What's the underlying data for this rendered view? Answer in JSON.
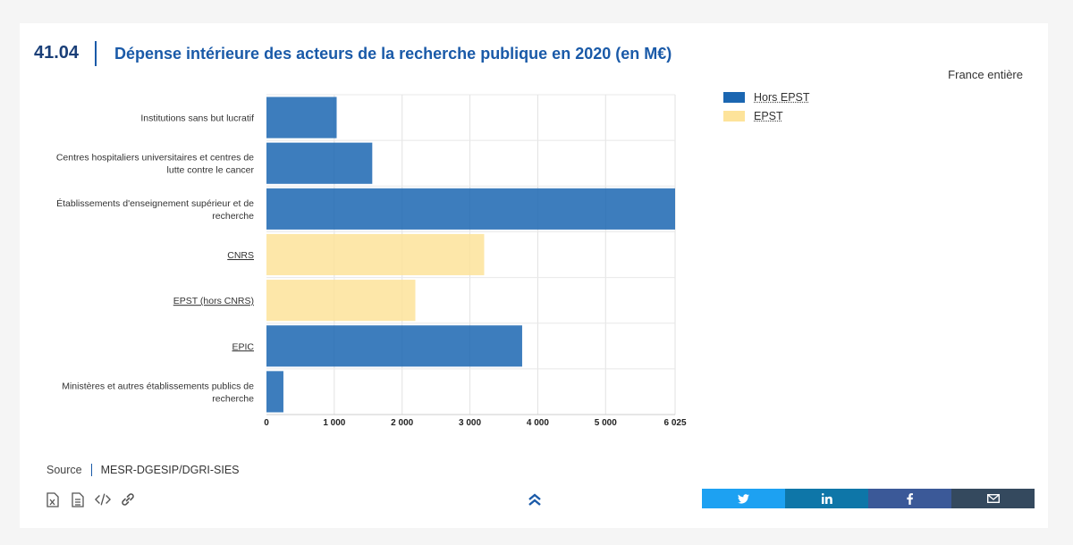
{
  "header": {
    "number": "41.04",
    "title": "Dépense intérieure des acteurs de la recherche publique en 2020 (en M€)",
    "scope": "France entière"
  },
  "legend": [
    {
      "label": "Hors EPST",
      "color": "#1b66b1"
    },
    {
      "label": "EPST",
      "color": "#fde39a"
    }
  ],
  "chart_data": {
    "type": "bar",
    "orientation": "horizontal",
    "categories": [
      "Institutions sans but lucratif",
      "Centres hospitaliers universitaires et centres de lutte contre le cancer",
      "Établissements d'enseignement supérieur et de recherche",
      "CNRS",
      "EPST (hors CNRS)",
      "EPIC",
      "Ministères et autres établissements publics de recherche"
    ],
    "values": [
      1035,
      1560,
      6025,
      3210,
      2195,
      3770,
      250
    ],
    "bar_series": [
      "Hors EPST",
      "Hors EPST",
      "Hors EPST",
      "EPST",
      "EPST",
      "Hors EPST",
      "Hors EPST"
    ],
    "series": [
      {
        "name": "Hors EPST",
        "values": [
          1035,
          1560,
          6025,
          null,
          null,
          3770,
          250
        ]
      },
      {
        "name": "EPST",
        "values": [
          null,
          null,
          null,
          3210,
          2195,
          null,
          null
        ]
      }
    ],
    "xticks": [
      "0",
      "1 000",
      "2 000",
      "3 000",
      "4 000",
      "5 000",
      "6 025"
    ],
    "xtick_values": [
      0,
      1000,
      2000,
      3000,
      4000,
      5000,
      6025
    ],
    "xlim": [
      0,
      6025
    ],
    "grid": true,
    "legend_position": "top-right",
    "title": "Dépense intérieure des acteurs de la recherche publique en 2020 (en M€)"
  },
  "source": {
    "label": "Source",
    "value": "MESR-DGESIP/DGRI-SIES"
  },
  "tools": [
    "excel-icon",
    "document-icon",
    "code-icon",
    "link-icon"
  ],
  "share": [
    {
      "name": "twitter",
      "color": "#1da1f2"
    },
    {
      "name": "linkedin",
      "color": "#0e76a8"
    },
    {
      "name": "facebook",
      "color": "#3b5998"
    },
    {
      "name": "email",
      "color": "#34495e"
    }
  ]
}
